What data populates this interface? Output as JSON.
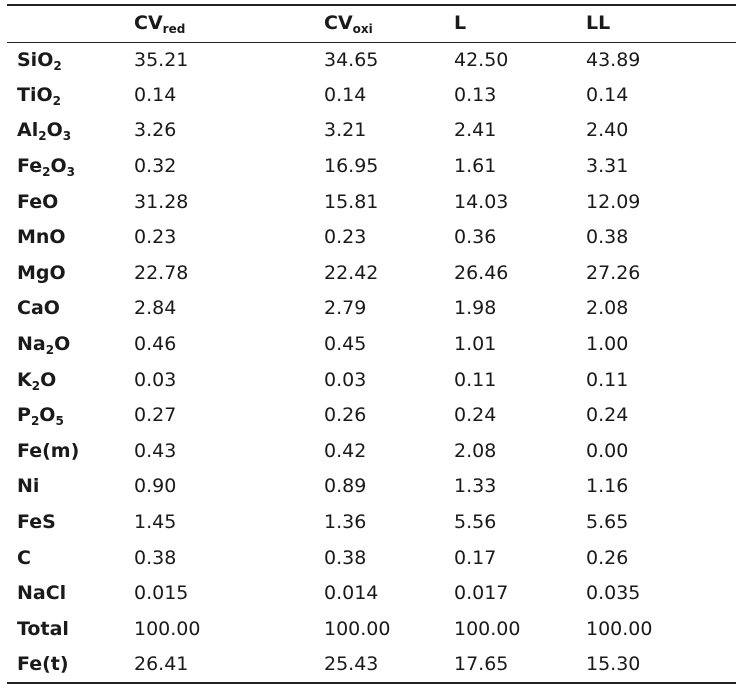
{
  "table": {
    "columns": [
      {
        "base": "",
        "sub": ""
      },
      {
        "base": "CV",
        "sub": "red"
      },
      {
        "base": "CV",
        "sub": "oxi"
      },
      {
        "base": "L",
        "sub": ""
      },
      {
        "base": "LL",
        "sub": ""
      }
    ],
    "rows": [
      {
        "label": [
          {
            "t": "SiO"
          },
          {
            "s": "2"
          }
        ],
        "values": [
          "35.21",
          "34.65",
          "42.50",
          "43.89"
        ]
      },
      {
        "label": [
          {
            "t": "TiO"
          },
          {
            "s": "2"
          }
        ],
        "values": [
          "0.14",
          "0.14",
          "0.13",
          "0.14"
        ]
      },
      {
        "label": [
          {
            "t": "Al"
          },
          {
            "s": "2"
          },
          {
            "t": "O"
          },
          {
            "s": "3"
          }
        ],
        "values": [
          "3.26",
          "3.21",
          "2.41",
          "2.40"
        ]
      },
      {
        "label": [
          {
            "t": "Fe"
          },
          {
            "s": "2"
          },
          {
            "t": "O"
          },
          {
            "s": "3"
          }
        ],
        "values": [
          "0.32",
          "16.95",
          "1.61",
          "3.31"
        ]
      },
      {
        "label": [
          {
            "t": "FeO"
          }
        ],
        "values": [
          "31.28",
          "15.81",
          "14.03",
          "12.09"
        ]
      },
      {
        "label": [
          {
            "t": "MnO"
          }
        ],
        "values": [
          "0.23",
          "0.23",
          "0.36",
          "0.38"
        ]
      },
      {
        "label": [
          {
            "t": "MgO"
          }
        ],
        "values": [
          "22.78",
          "22.42",
          "26.46",
          "27.26"
        ]
      },
      {
        "label": [
          {
            "t": "CaO"
          }
        ],
        "values": [
          "2.84",
          "2.79",
          "1.98",
          "2.08"
        ]
      },
      {
        "label": [
          {
            "t": "Na"
          },
          {
            "s": "2"
          },
          {
            "t": "O"
          }
        ],
        "values": [
          "0.46",
          "0.45",
          "1.01",
          "1.00"
        ]
      },
      {
        "label": [
          {
            "t": "K"
          },
          {
            "s": "2"
          },
          {
            "t": "O"
          }
        ],
        "values": [
          "0.03",
          "0.03",
          "0.11",
          "0.11"
        ]
      },
      {
        "label": [
          {
            "t": "P"
          },
          {
            "s": "2"
          },
          {
            "t": "O"
          },
          {
            "s": "5"
          }
        ],
        "values": [
          "0.27",
          "0.26",
          "0.24",
          "0.24"
        ]
      },
      {
        "label": [
          {
            "t": "Fe(m)"
          }
        ],
        "values": [
          "0.43",
          "0.42",
          "2.08",
          "0.00"
        ]
      },
      {
        "label": [
          {
            "t": "Ni"
          }
        ],
        "values": [
          "0.90",
          "0.89",
          "1.33",
          "1.16"
        ]
      },
      {
        "label": [
          {
            "t": "FeS"
          }
        ],
        "values": [
          "1.45",
          "1.36",
          "5.56",
          "5.65"
        ]
      },
      {
        "label": [
          {
            "t": "C"
          }
        ],
        "values": [
          "0.38",
          "0.38",
          "0.17",
          "0.26"
        ]
      },
      {
        "label": [
          {
            "t": "NaCl"
          }
        ],
        "values": [
          "0.015",
          "0.014",
          "0.017",
          "0.035"
        ]
      },
      {
        "label": [
          {
            "t": "Total"
          }
        ],
        "values": [
          "100.00",
          "100.00",
          "100.00",
          "100.00"
        ]
      },
      {
        "label": [
          {
            "t": "Fe(t)"
          }
        ],
        "values": [
          "26.41",
          "25.43",
          "17.65",
          "15.30"
        ]
      }
    ]
  }
}
